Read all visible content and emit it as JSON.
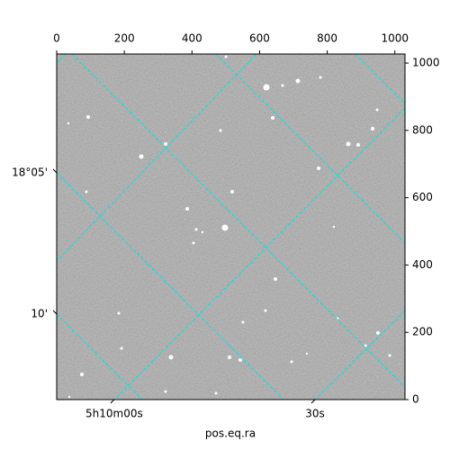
{
  "chart_data": {
    "type": "image",
    "xlabel": "pos.eq.ra",
    "xlim": [
      0,
      1030
    ],
    "ylim": [
      0,
      1027
    ],
    "xticks": [
      0,
      200,
      400,
      600,
      800,
      1000
    ],
    "yticks": [
      0,
      200,
      400,
      600,
      800,
      1000
    ],
    "ra_ticks": [
      {
        "value": 170,
        "label": "5h10m00s"
      },
      {
        "value": 764,
        "label": "30s"
      }
    ],
    "dec_ticks": [
      {
        "value": 674,
        "label": "18°05'"
      },
      {
        "value": 254,
        "label": "10'"
      }
    ],
    "grid_color": "#00e5e5"
  }
}
